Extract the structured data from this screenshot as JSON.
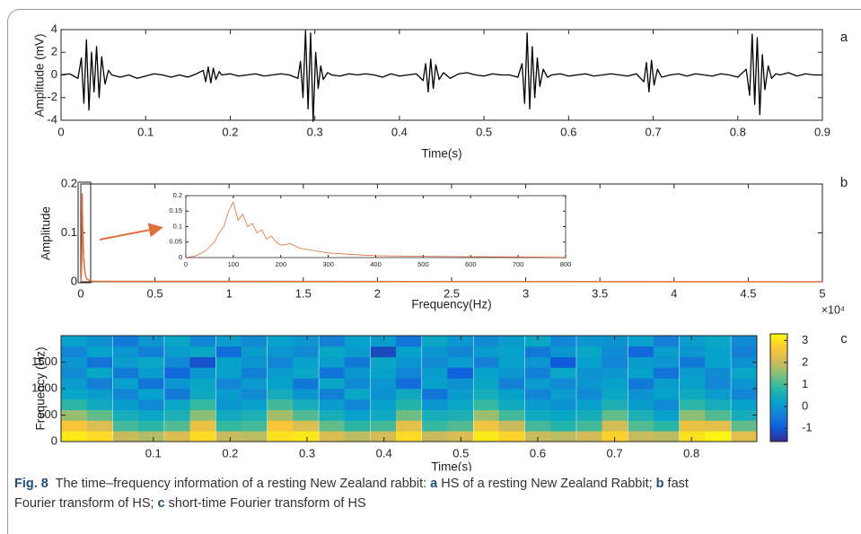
{
  "chart_data": [
    {
      "type": "line",
      "panel_label": "a",
      "xlabel": "Time(s)",
      "ylabel": "Amplitude (mV)",
      "xlim": [
        0,
        0.9
      ],
      "xticks": [
        0,
        0.1,
        0.2,
        0.3,
        0.4,
        0.5,
        0.6,
        0.7,
        0.8,
        0.9
      ],
      "ylim": [
        -4,
        4
      ],
      "yticks": [
        -4,
        -2,
        0,
        2,
        4
      ],
      "x": [
        0,
        0.01,
        0.02,
        0.024,
        0.027,
        0.03,
        0.033,
        0.036,
        0.039,
        0.042,
        0.045,
        0.048,
        0.052,
        0.056,
        0.06,
        0.07,
        0.08,
        0.09,
        0.1,
        0.11,
        0.12,
        0.13,
        0.14,
        0.15,
        0.16,
        0.168,
        0.171,
        0.174,
        0.177,
        0.18,
        0.183,
        0.187,
        0.19,
        0.2,
        0.21,
        0.22,
        0.23,
        0.24,
        0.25,
        0.26,
        0.27,
        0.28,
        0.283,
        0.286,
        0.289,
        0.292,
        0.295,
        0.298,
        0.301,
        0.304,
        0.307,
        0.31,
        0.315,
        0.32,
        0.33,
        0.34,
        0.35,
        0.36,
        0.37,
        0.38,
        0.39,
        0.4,
        0.41,
        0.42,
        0.428,
        0.431,
        0.434,
        0.437,
        0.44,
        0.443,
        0.447,
        0.452,
        0.46,
        0.47,
        0.48,
        0.49,
        0.5,
        0.51,
        0.52,
        0.53,
        0.54,
        0.545,
        0.548,
        0.551,
        0.554,
        0.557,
        0.56,
        0.563,
        0.566,
        0.57,
        0.575,
        0.58,
        0.59,
        0.6,
        0.61,
        0.62,
        0.63,
        0.64,
        0.65,
        0.66,
        0.67,
        0.68,
        0.689,
        0.692,
        0.695,
        0.698,
        0.701,
        0.705,
        0.71,
        0.72,
        0.73,
        0.74,
        0.75,
        0.76,
        0.77,
        0.78,
        0.79,
        0.8,
        0.81,
        0.814,
        0.817,
        0.82,
        0.823,
        0.826,
        0.829,
        0.832,
        0.836,
        0.84,
        0.845,
        0.85,
        0.86,
        0.87,
        0.88,
        0.89,
        0.9
      ],
      "series": [
        {
          "color": "#000000",
          "values": [
            0,
            0.1,
            -0.3,
            1.5,
            -2.5,
            3.1,
            -3.1,
            2.0,
            -1.5,
            2.5,
            -2.0,
            1.6,
            -0.8,
            0.4,
            0,
            -0.2,
            0,
            -0.3,
            -0.1,
            0.1,
            0,
            -0.2,
            0,
            -0.2,
            0.1,
            0.4,
            -0.6,
            0.7,
            -0.7,
            0.6,
            -0.4,
            0.3,
            0,
            0.1,
            -0.1,
            0,
            0.1,
            -0.1,
            0,
            0.1,
            0,
            -0.3,
            1.2,
            -2.0,
            3.9,
            -3.0,
            3.7,
            -4.1,
            2.0,
            -1.2,
            0.8,
            -0.4,
            0.2,
            0,
            -0.1,
            0.1,
            0,
            0.1,
            0,
            -0.2,
            0.1,
            -0.1,
            0,
            0.1,
            -0.5,
            1.0,
            -1.5,
            1.4,
            -1.2,
            0.9,
            -0.4,
            0.2,
            -0.3,
            0.1,
            0.2,
            0,
            -0.1,
            0.1,
            0,
            0,
            -0.2,
            1.0,
            -2.5,
            3.7,
            -3.0,
            2.5,
            -2.0,
            1.5,
            -1.0,
            0.5,
            -0.2,
            0,
            0.1,
            -0.1,
            0,
            0.1,
            -0.1,
            0,
            0.1,
            0,
            -0.1,
            0.1,
            -0.6,
            1.1,
            -1.5,
            1.3,
            -0.9,
            0.5,
            -0.2,
            0,
            0.1,
            -0.1,
            0.1,
            0,
            -0.1,
            0.1,
            0,
            -0.2,
            0.5,
            -1.8,
            3.6,
            -2.6,
            3.3,
            -3.5,
            1.8,
            -1.3,
            0.8,
            -0.3,
            0.1,
            0,
            0.2,
            -0.1,
            0.1,
            0,
            0
          ]
        }
      ]
    },
    {
      "type": "line",
      "panel_label": "b",
      "xlabel": "Frequency(Hz)",
      "ylabel": "Amplitude",
      "x_multiplier": "×10⁴",
      "xlim": [
        0,
        50000
      ],
      "xticks": [
        0,
        {
          "value": 5000,
          "label": "0.5"
        },
        {
          "value": 10000,
          "label": "1"
        },
        {
          "value": 15000,
          "label": "1.5"
        },
        {
          "value": 20000,
          "label": "2"
        },
        {
          "value": 25000,
          "label": "2.5"
        },
        {
          "value": 30000,
          "label": "3"
        },
        {
          "value": 35000,
          "label": "3.5"
        },
        {
          "value": 40000,
          "label": "4"
        },
        {
          "value": 45000,
          "label": "4.5"
        },
        {
          "value": 50000,
          "label": "5"
        }
      ],
      "ylim": [
        0,
        0.2
      ],
      "yticks": [
        0,
        0.1,
        0.2
      ],
      "x": [
        0,
        20,
        40,
        60,
        70,
        80,
        90,
        100,
        110,
        120,
        130,
        140,
        150,
        160,
        170,
        180,
        190,
        200,
        220,
        240,
        260,
        280,
        300,
        350,
        400,
        500,
        600,
        800,
        50000
      ],
      "series": [
        {
          "color": "#e0703a",
          "values": [
            0,
            0.005,
            0.02,
            0.05,
            0.08,
            0.1,
            0.15,
            0.18,
            0.12,
            0.14,
            0.1,
            0.11,
            0.08,
            0.09,
            0.06,
            0.07,
            0.05,
            0.04,
            0.045,
            0.03,
            0.025,
            0.02,
            0.015,
            0.01,
            0.006,
            0.004,
            0.003,
            0.001,
            0
          ]
        }
      ],
      "inset": {
        "xlim": [
          0,
          800
        ],
        "xticks": [
          0,
          100,
          200,
          300,
          400,
          500,
          600,
          700,
          800
        ],
        "ylim": [
          0,
          0.2
        ],
        "yticks": [
          0,
          0.05,
          0.1,
          0.15,
          0.2
        ]
      }
    },
    {
      "type": "heatmap",
      "panel_label": "c",
      "xlabel": "Time(s)",
      "ylabel": "Frequency (Hz)",
      "xlim": [
        -0.02,
        0.885
      ],
      "xticks": [
        0.1,
        0.2,
        0.3,
        0.4,
        0.5,
        0.6,
        0.7,
        0.8
      ],
      "ylim": [
        0,
        2000
      ],
      "yticks": [
        0,
        500,
        1000,
        1500
      ],
      "x": [
        -0.003,
        0.03,
        0.064,
        0.097,
        0.131,
        0.164,
        0.198,
        0.231,
        0.265,
        0.298,
        0.332,
        0.365,
        0.399,
        0.432,
        0.466,
        0.499,
        0.533,
        0.566,
        0.6,
        0.633,
        0.667,
        0.7,
        0.734,
        0.767,
        0.801,
        0.834,
        0.868
      ],
      "y": [
        100,
        300,
        500,
        700,
        900,
        1100,
        1300,
        1500,
        1700,
        1900
      ],
      "z": [
        [
          3.1,
          2.9,
          2.0,
          1.8,
          2.2,
          2.9,
          2.0,
          1.9,
          3.0,
          3.1,
          2.2,
          1.9,
          2.1,
          2.9,
          2.0,
          2.2,
          3.1,
          2.8,
          2.0,
          1.9,
          2.1,
          2.8,
          2.0,
          1.9,
          3.0,
          3.2,
          2.3
        ],
        [
          2.6,
          2.2,
          1.0,
          0.8,
          1.1,
          2.4,
          0.9,
          1.0,
          2.6,
          2.2,
          1.2,
          0.8,
          1.0,
          2.3,
          0.9,
          1.1,
          2.5,
          2.0,
          1.0,
          0.7,
          1.0,
          2.1,
          1.1,
          0.8,
          2.4,
          2.3,
          1.2
        ],
        [
          1.6,
          1.2,
          0.5,
          0.3,
          0.6,
          1.5,
          0.4,
          0.6,
          1.7,
          1.1,
          0.5,
          0.2,
          0.4,
          1.3,
          0.5,
          0.6,
          1.6,
          1.0,
          0.4,
          0.3,
          0.5,
          1.2,
          0.6,
          0.2,
          1.5,
          1.1,
          0.5
        ],
        [
          0.8,
          0.4,
          0.1,
          -0.2,
          0.3,
          0.9,
          0.0,
          0.2,
          1.0,
          0.5,
          0.1,
          -0.3,
          0.2,
          0.7,
          0.0,
          0.3,
          0.9,
          0.4,
          0.1,
          -0.1,
          0.2,
          0.6,
          0.1,
          -0.2,
          0.8,
          0.5,
          0.2
        ],
        [
          0.3,
          0.1,
          -0.3,
          0.2,
          -0.5,
          0.4,
          0.1,
          -0.2,
          0.5,
          0.0,
          -0.4,
          0.3,
          -0.1,
          0.4,
          -0.6,
          0.1,
          0.5,
          0.2,
          -0.3,
          0.1,
          -0.2,
          0.3,
          -0.1,
          0.2,
          0.4,
          0.1,
          -0.3
        ],
        [
          0.1,
          -0.4,
          0.2,
          -0.6,
          0.0,
          0.3,
          -0.3,
          0.1,
          0.2,
          -0.5,
          0.3,
          -0.2,
          0.0,
          -0.7,
          0.2,
          -0.1,
          0.3,
          -0.4,
          0.1,
          -0.2,
          0.0,
          0.2,
          -0.5,
          0.1,
          0.2,
          -0.3,
          0.0
        ],
        [
          -0.2,
          0.3,
          -0.5,
          0.1,
          -0.8,
          0.0,
          0.2,
          -0.4,
          0.1,
          0.3,
          -0.6,
          0.0,
          0.2,
          -0.3,
          0.1,
          -0.9,
          0.2,
          0.0,
          -0.4,
          0.3,
          -0.1,
          0.0,
          0.2,
          -0.6,
          0.1,
          -0.2,
          0.3
        ],
        [
          0.0,
          -0.6,
          0.1,
          0.3,
          -0.2,
          -1.1,
          0.2,
          0.0,
          -0.3,
          0.2,
          0.1,
          -0.5,
          0.3,
          0.0,
          -0.2,
          0.1,
          -0.4,
          0.2,
          0.0,
          -1.0,
          0.2,
          -0.3,
          0.1,
          0.0,
          -0.5,
          0.2,
          -0.1
        ],
        [
          -0.3,
          0.2,
          0.0,
          -0.4,
          0.1,
          0.3,
          -0.7,
          0.1,
          0.0,
          -0.2,
          0.3,
          0.1,
          -1.2,
          0.2,
          0.0,
          -0.3,
          0.1,
          0.2,
          -0.5,
          0.0,
          0.3,
          -0.2,
          -0.8,
          0.1,
          0.0,
          0.2,
          -0.4
        ],
        [
          0.2,
          -0.1,
          -0.5,
          0.0,
          0.3,
          -0.3,
          0.1,
          -0.2,
          0.2,
          0.0,
          -0.4,
          0.2,
          0.1,
          -0.6,
          0.3,
          0.0,
          -0.2,
          0.1,
          0.3,
          -0.3,
          0.0,
          -0.1,
          0.2,
          -0.4,
          0.1,
          0.3,
          -0.2
        ]
      ],
      "zlim": [
        -1.6,
        3.3
      ],
      "zticks": [
        -1,
        0,
        1,
        2,
        3
      ],
      "colormap": [
        "#352a87",
        "#0f5cdd",
        "#1481d6",
        "#06a4ca",
        "#2eb7a4",
        "#87bf77",
        "#d1bb59",
        "#fec832",
        "#f9fb0e"
      ]
    }
  ],
  "caption": [
    {
      "text": "Fig. 8",
      "bold": true
    },
    {
      "text": "  The time–frequency information of a resting New Zealand rabbit: ",
      "bold": false
    },
    {
      "text": "a",
      "bold": true
    },
    {
      "text": " HS of a resting New Zealand Rabbit; ",
      "bold": false
    },
    {
      "text": "b",
      "bold": true
    },
    {
      "text": " fast Fourier transform of HS; ",
      "bold": false
    },
    {
      "text": "c",
      "bold": true
    },
    {
      "text": " short-time Fourier transform of HS",
      "bold": false
    }
  ]
}
